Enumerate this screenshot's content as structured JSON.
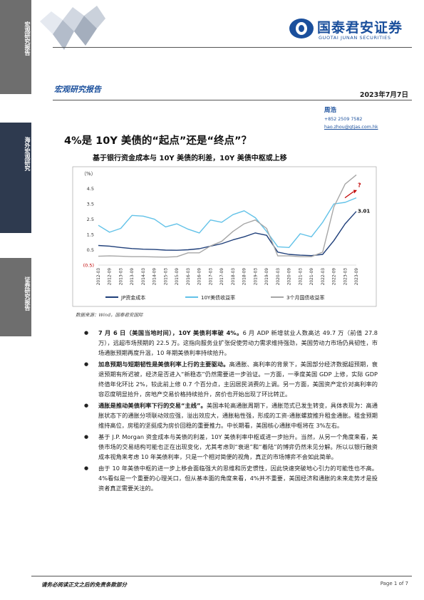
{
  "sidebar": {
    "top_label": "宏观研究报告",
    "mid_label": "海外宏观研究",
    "bot_label": "证券研究报告"
  },
  "brand": {
    "name_cn": "国泰君安证券",
    "name_en": "GUOTAI JUNAN SECURITIES",
    "color": "#1a4f9c"
  },
  "header": {
    "report_type": "宏观研究报告",
    "date": "2023年7月7日"
  },
  "author": {
    "name": "周浩",
    "phone": "+852 2509 7582",
    "email": "hao.zhou@gtjas.com.hk"
  },
  "title": "4%是 10Y 美债的“起点”还是“终点”？",
  "subtitle": "基于银行资金成本与 10Y 美债的利差，10Y 美债中枢或上移",
  "chart_data": {
    "type": "line",
    "ylabel": "（%）",
    "ylim": [
      -0.5,
      5.0
    ],
    "yticks": [
      "4.5",
      "3.5",
      "2.5",
      "1.5",
      "0.5",
      "(0.5)"
    ],
    "ytick_values": [
      4.5,
      3.5,
      2.5,
      1.5,
      0.5,
      -0.5
    ],
    "categories": [
      "2012-03",
      "2012-09",
      "2013-03",
      "2013-09",
      "2014-03",
      "2014-09",
      "2015-03",
      "2015-09",
      "2016-03",
      "2016-09",
      "2017-03",
      "2017-09",
      "2018-03",
      "2018-09",
      "2019-03",
      "2019-09",
      "2020-03",
      "2020-09",
      "2021-03",
      "2021-09",
      "2022-03",
      "2022-09",
      "2023-03",
      "2023-09"
    ],
    "series": [
      {
        "name": "JP资金成本",
        "color": "#1f3f7a",
        "values": [
          0.78,
          0.74,
          0.65,
          0.58,
          0.54,
          0.52,
          0.48,
          0.47,
          0.5,
          0.57,
          0.74,
          0.9,
          1.15,
          1.35,
          1.6,
          1.45,
          0.35,
          0.2,
          0.15,
          0.12,
          0.2,
          1.1,
          2.2,
          3.01
        ]
      },
      {
        "name": "10Y美债收益率",
        "color": "#62c2e8",
        "values": [
          2.1,
          1.65,
          1.9,
          2.75,
          2.7,
          2.5,
          2.0,
          2.2,
          1.85,
          1.6,
          2.45,
          2.3,
          2.8,
          3.05,
          2.6,
          1.7,
          0.7,
          0.65,
          1.55,
          1.35,
          2.3,
          3.5,
          3.6,
          3.9
        ]
      },
      {
        "name": "3个月国债收益率",
        "color": "#a6a6a6",
        "values": [
          0.08,
          0.1,
          0.08,
          0.05,
          0.05,
          0.03,
          0.02,
          0.05,
          0.3,
          0.3,
          0.75,
          1.05,
          1.7,
          2.2,
          2.45,
          1.9,
          0.1,
          0.1,
          0.05,
          0.05,
          0.35,
          3.3,
          4.8,
          5.4
        ]
      }
    ],
    "annotations": [
      "3.01",
      "?"
    ],
    "legend_position": "bottom",
    "grid": false
  },
  "source": "数据来源：Wind，国泰君安国际",
  "bullets": [
    {
      "bold": "7 月 6 日（美国当地时间），10Y 美债利率破 4%。",
      "text": "6 月 ADP 新增就业人数高达 49.7 万（前值 27.8 万），远超市场预期的 22.5 万。这指向服务业扩张促使劳动力需求维持强劲，美国劳动力市场仍具韧性，市场通胀预期再度升温，10 年期美债利率持续拾升。"
    },
    {
      "bold": "加息预期与短期韧性是美债利率上行的主要驱动。",
      "text": "高通胀、高利率的背景下，美国部分经济数据超预期，衰退预期有所迟被，经济是否进入“新稳态”仍然需要进一步验证。一方面，一季度美国 GDP 上修，实际 GDP 终值年化环比 2%，较此前上修 0.7 个百分点，主因居民消费的上调。另一方面，美国资产定价对高利率的容忍度明显拾升，房地产交易价格持续拾升，房价也开始出现了环比转正。"
    },
    {
      "bold": "通胀是推动美债利率下行的交易“主线”。",
      "text": "美国本轮高通胀周期下，通胀范式已发生转变，具体表现为：高通胀状态下的通胀分项联动效应强，溢出效应大，通胀粘性强，形成的工资-通胀螺旋推升租金通胀。租金预期维持高位，房租的坚挺成为房价回稳的重要推力。中长期看，美国核心通胀中枢将在 3%左右。"
    },
    {
      "bold": "",
      "text": "基于 J.P. Morgan 资金成本与美债的利差，10Y 美债利率中枢或进一步抬升。当然，从另一个角度来看，美债市场的交易结构可能也正在出现变化，尤其考虑到“衰退”和“着陆”的博弈仍然未见分解。所以以银行融资成本视角来考虑 10 年美债利率，只是一个相对简便的视角，真正的市场博弈不会如此简单。"
    },
    {
      "bold": "",
      "text": "由于 10 年美债中枢的进一步上移会面临强大的思维和历史惯性，因此快速突破地心引力的可能性也不高。4%看似是一个重要的心理关口，但从基本面的角度来看，4%并不重要，美国经济和通胀的未来走势才是投资者真正需要关注的。"
    }
  ],
  "footer": {
    "disclaimer": "请务必阅读正文之后的免责条款部分",
    "page": "Page 1 of 7"
  }
}
